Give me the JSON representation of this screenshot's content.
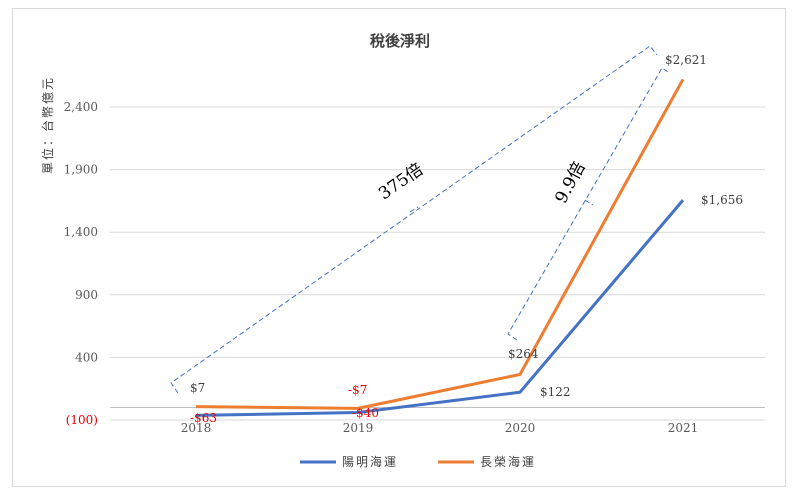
{
  "chart_data": {
    "type": "line",
    "title": "稅後淨利",
    "ylabel": "單位：台幣億元",
    "categories": [
      "2018",
      "2019",
      "2020",
      "2021"
    ],
    "ylim": [
      -100,
      2900
    ],
    "yticks": [
      -100,
      400,
      900,
      1400,
      1900,
      2400
    ],
    "ytick_labels": [
      "(100)",
      "400",
      "900",
      "1,400",
      "1,900",
      "2,400"
    ],
    "series": [
      {
        "name": "陽明海運",
        "color": "#4472c4",
        "values": [
          -63,
          -40,
          122,
          1656
        ],
        "labels": [
          "-$63",
          "-$40",
          "$122",
          "$1,656"
        ]
      },
      {
        "name": "長榮海運",
        "color": "#ed7d31",
        "values": [
          7,
          -7,
          264,
          2621
        ],
        "labels": [
          "$7",
          "-$7",
          "$264",
          "$2,621"
        ]
      }
    ],
    "annotations": [
      "375倍",
      "9.9倍"
    ],
    "negative_color": "#e60000",
    "grid": true,
    "legend": "bottom"
  }
}
